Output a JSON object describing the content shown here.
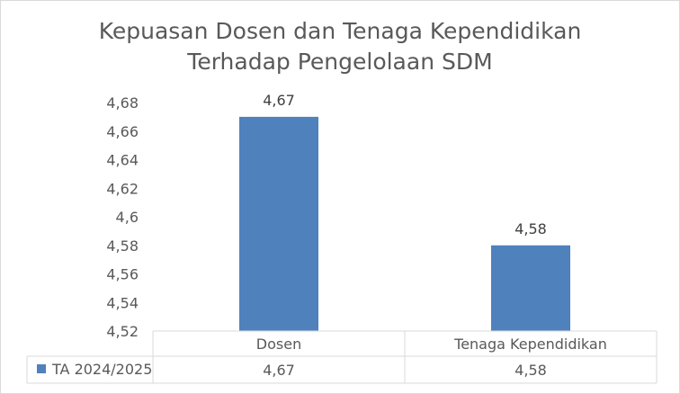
{
  "chart_data": {
    "type": "bar",
    "title": [
      "Kepuasan Dosen dan Tenaga Kependidikan",
      "Terhadap Pengelolaan SDM"
    ],
    "categories": [
      "Dosen",
      "Tenaga Kependidikan"
    ],
    "series": [
      {
        "name": "TA 2024/2025",
        "values": [
          4.67,
          4.58
        ],
        "color": "#4f81bd"
      }
    ],
    "data_labels": [
      "4,67",
      "4,58"
    ],
    "ylim": [
      4.52,
      4.68
    ],
    "yticks": [
      4.52,
      4.54,
      4.56,
      4.58,
      4.6,
      4.62,
      4.64,
      4.66,
      4.68
    ],
    "ytick_labels": [
      "4,52",
      "4,54",
      "4,56",
      "4,58",
      "4,6",
      "4,62",
      "4,64",
      "4,66",
      "4,68"
    ],
    "legend": "data-table",
    "grid": false
  }
}
